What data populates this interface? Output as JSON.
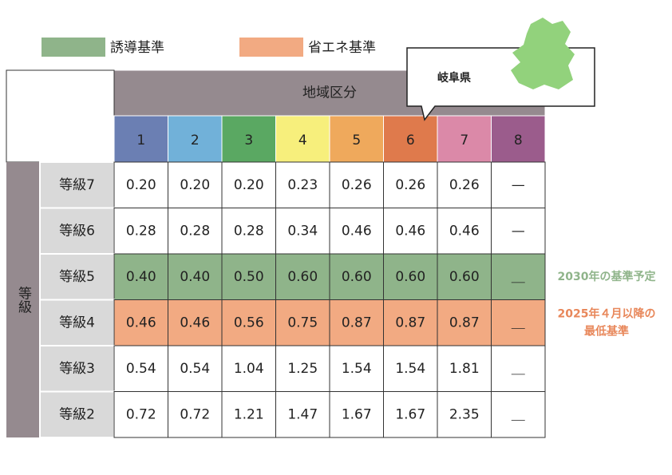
{
  "legend": {
    "items": [
      {
        "label": "誘導基準",
        "color": "#8fb48a"
      },
      {
        "label": "省エネ基準",
        "color": "#f2aa82"
      }
    ]
  },
  "callout": {
    "label": "岐阜県"
  },
  "table": {
    "header": "地域区分",
    "group": "等級",
    "zones": [
      {
        "label": "1",
        "color": "#6b7fb3"
      },
      {
        "label": "2",
        "color": "#71b1d9"
      },
      {
        "label": "3",
        "color": "#5aa862"
      },
      {
        "label": "4",
        "color": "#f7ef7c"
      },
      {
        "label": "5",
        "color": "#efa95c"
      },
      {
        "label": "6",
        "color": "#df7a4c"
      },
      {
        "label": "7",
        "color": "#db89a8"
      },
      {
        "label": "8",
        "color": "#9b5c8c"
      }
    ],
    "rows": [
      {
        "grade": "等級7",
        "values": [
          "0.20",
          "0.20",
          "0.20",
          "0.23",
          "0.26",
          "0.26",
          "0.26",
          "—"
        ]
      },
      {
        "grade": "等級6",
        "values": [
          "0.28",
          "0.28",
          "0.28",
          "0.34",
          "0.46",
          "0.46",
          "0.46",
          "—"
        ]
      },
      {
        "grade": "等級5",
        "values": [
          "0.40",
          "0.40",
          "0.50",
          "0.60",
          "0.60",
          "0.60",
          "0.60",
          "＿"
        ],
        "color": "#8fb48a",
        "note": [
          "2030年の基準予定"
        ],
        "note_color": "#8fb48a"
      },
      {
        "grade": "等級4",
        "values": [
          "0.46",
          "0.46",
          "0.56",
          "0.75",
          "0.87",
          "0.87",
          "0.87",
          "＿"
        ],
        "color": "#f2aa82",
        "note": [
          "2025年４月以降の",
          "最低基準"
        ],
        "note_color": "#e8875a"
      },
      {
        "grade": "等級3",
        "values": [
          "0.54",
          "0.54",
          "1.04",
          "1.25",
          "1.54",
          "1.54",
          "1.81",
          "＿"
        ]
      },
      {
        "grade": "等級2",
        "values": [
          "0.72",
          "0.72",
          "1.21",
          "1.47",
          "1.67",
          "1.67",
          "2.35",
          "＿"
        ]
      }
    ]
  }
}
